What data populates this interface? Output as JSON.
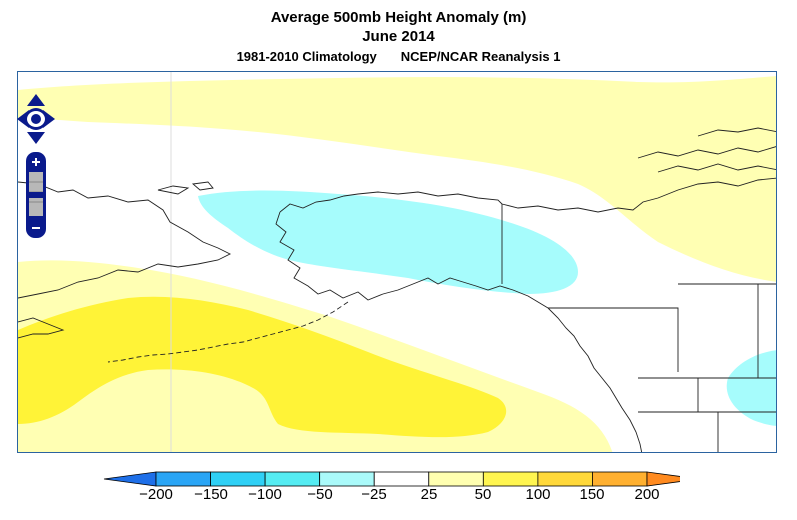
{
  "title": {
    "line1": "Average 500mb Height Anomaly (m)",
    "line2": "June 2014",
    "climatology": "1981-2010 Climatology",
    "dataset": "NCEP/NCAR Reanalysis 1"
  },
  "colorbar": {
    "ticks": [
      "−200",
      "−150",
      "−100",
      "−50",
      "−25",
      "25",
      "50",
      "100",
      "150",
      "200"
    ],
    "colors": [
      "#1e6fe8",
      "#2aa5f5",
      "#2fd0f5",
      "#55ecf2",
      "#aafafa",
      "#ffffff",
      "#ffffb0",
      "#fff550",
      "#ffd83a",
      "#ffb030",
      "#ff8a1f"
    ]
  },
  "map": {
    "colors": {
      "light_yellow": "#ffffb3",
      "yellow": "#fff337",
      "cyan": "#a6fcfc",
      "frame": "#2b63a0"
    }
  },
  "controls": {
    "pan": "pan-control",
    "zoom_in": "+",
    "zoom_out": "−"
  }
}
